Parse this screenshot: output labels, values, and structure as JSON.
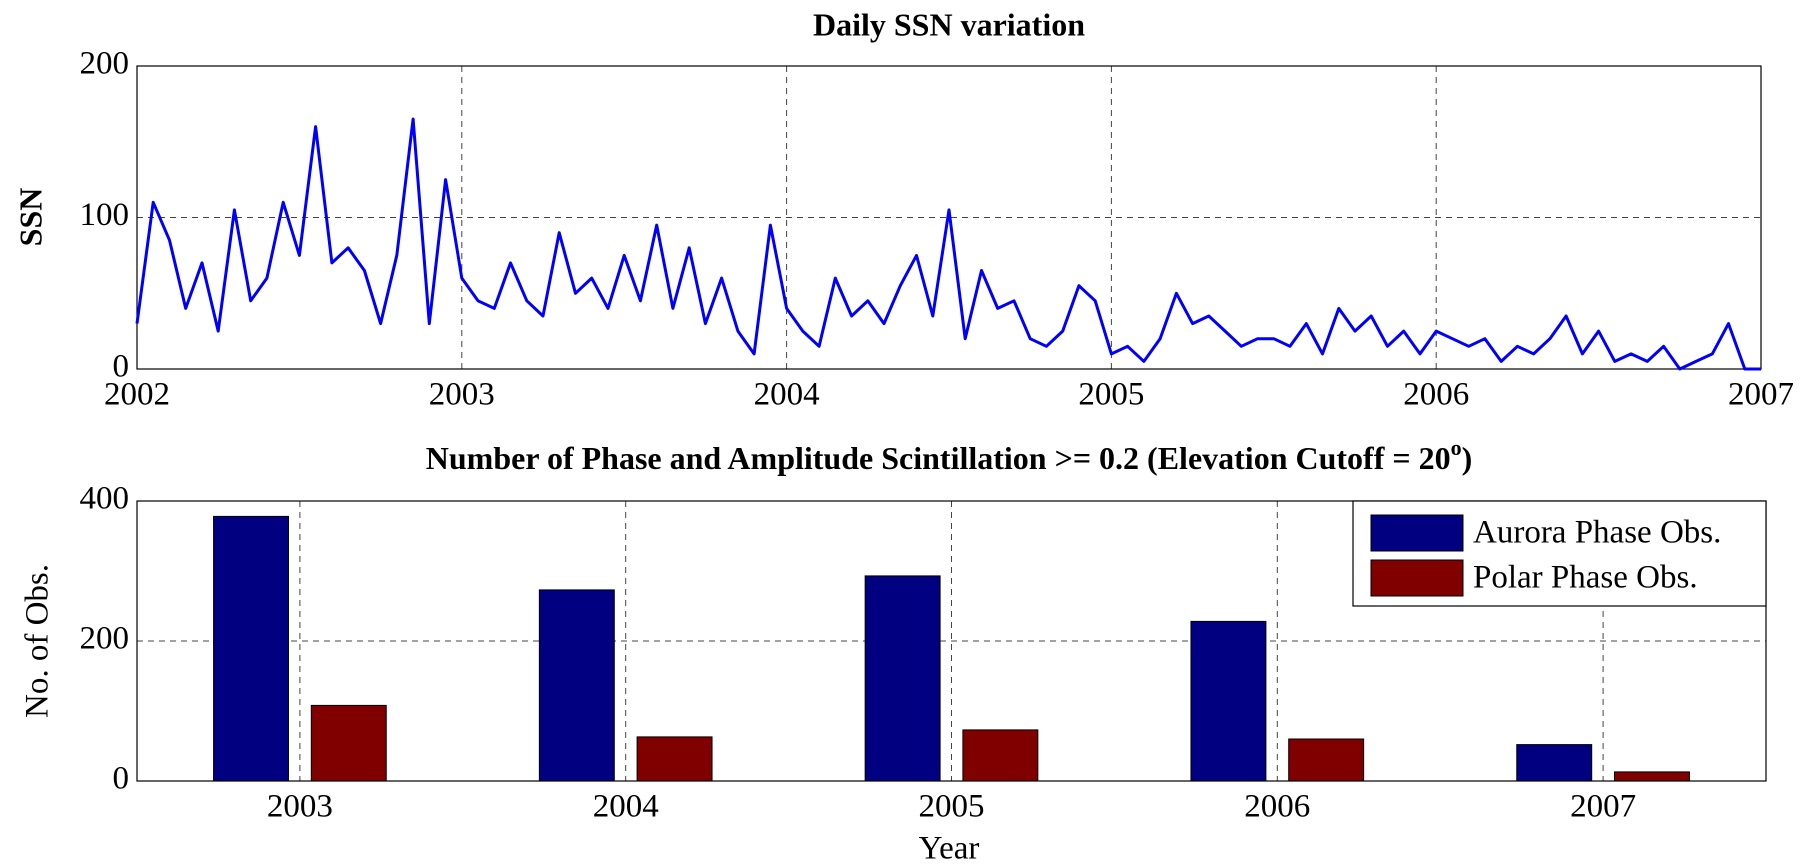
{
  "chart_data": [
    {
      "type": "line",
      "title": "Daily SSN variation",
      "ylabel": "SSN",
      "x": [
        2002.0,
        2002.05,
        2002.1,
        2002.15,
        2002.2,
        2002.25,
        2002.3,
        2002.35,
        2002.4,
        2002.45,
        2002.5,
        2002.55,
        2002.6,
        2002.65,
        2002.7,
        2002.75,
        2002.8,
        2002.85,
        2002.9,
        2002.95,
        2003.0,
        2003.05,
        2003.1,
        2003.15,
        2003.2,
        2003.25,
        2003.3,
        2003.35,
        2003.4,
        2003.45,
        2003.5,
        2003.55,
        2003.6,
        2003.65,
        2003.7,
        2003.75,
        2003.8,
        2003.85,
        2003.9,
        2003.95,
        2004.0,
        2004.05,
        2004.1,
        2004.15,
        2004.2,
        2004.25,
        2004.3,
        2004.35,
        2004.4,
        2004.45,
        2004.5,
        2004.55,
        2004.6,
        2004.65,
        2004.7,
        2004.75,
        2004.8,
        2004.85,
        2004.9,
        2004.95,
        2005.0,
        2005.05,
        2005.1,
        2005.15,
        2005.2,
        2005.25,
        2005.3,
        2005.35,
        2005.4,
        2005.45,
        2005.5,
        2005.55,
        2005.6,
        2005.65,
        2005.7,
        2005.75,
        2005.8,
        2005.85,
        2005.9,
        2005.95,
        2006.0,
        2006.05,
        2006.1,
        2006.15,
        2006.2,
        2006.25,
        2006.3,
        2006.35,
        2006.4,
        2006.45,
        2006.5,
        2006.55,
        2006.6,
        2006.65,
        2006.7,
        2006.75,
        2006.8,
        2006.85,
        2006.9,
        2006.95,
        2007.0
      ],
      "series": [
        {
          "color": "#0000ff",
          "values": [
            30,
            110,
            85,
            40,
            70,
            25,
            105,
            45,
            60,
            110,
            75,
            160,
            70,
            80,
            65,
            30,
            75,
            165,
            30,
            125,
            60,
            45,
            40,
            70,
            45,
            35,
            90,
            50,
            60,
            40,
            75,
            45,
            95,
            40,
            80,
            30,
            60,
            25,
            10,
            95,
            40,
            25,
            15,
            60,
            35,
            45,
            30,
            55,
            75,
            35,
            105,
            20,
            65,
            40,
            45,
            20,
            15,
            25,
            55,
            45,
            10,
            15,
            5,
            20,
            50,
            30,
            35,
            25,
            15,
            20,
            20,
            15,
            30,
            10,
            40,
            25,
            35,
            15,
            25,
            10,
            25,
            20,
            15,
            20,
            5,
            15,
            10,
            20,
            35,
            10,
            25,
            5,
            10,
            5,
            15,
            0,
            5,
            10,
            30,
            0,
            0
          ]
        }
      ],
      "xlim": [
        2002,
        2007
      ],
      "xticks": [
        2002,
        2003,
        2004,
        2005,
        2006,
        2007
      ],
      "ylim": [
        0,
        200
      ],
      "yticks": [
        0,
        100,
        200
      ],
      "grid": true
    },
    {
      "type": "bar",
      "title": "Number of Phase and Amplitude Scintillation  >= 0.2 (Elevation Cutoff = 20",
      "title_superscript": "o",
      "title_end": ")",
      "xlabel": "Year",
      "ylabel": "No. of Obs.",
      "categories": [
        "2003",
        "2004",
        "2005",
        "2006",
        "2007"
      ],
      "series": [
        {
          "name": "Aurora Phase Obs.",
          "color": "#000080",
          "values": [
            378,
            273,
            293,
            228,
            52
          ]
        },
        {
          "name": "Polar Phase Obs.",
          "color": "#800000",
          "values": [
            108,
            63,
            73,
            60,
            13
          ]
        }
      ],
      "ylim": [
        0,
        400
      ],
      "yticks": [
        0,
        200,
        400
      ],
      "grid": true,
      "legend": "top-right"
    }
  ]
}
